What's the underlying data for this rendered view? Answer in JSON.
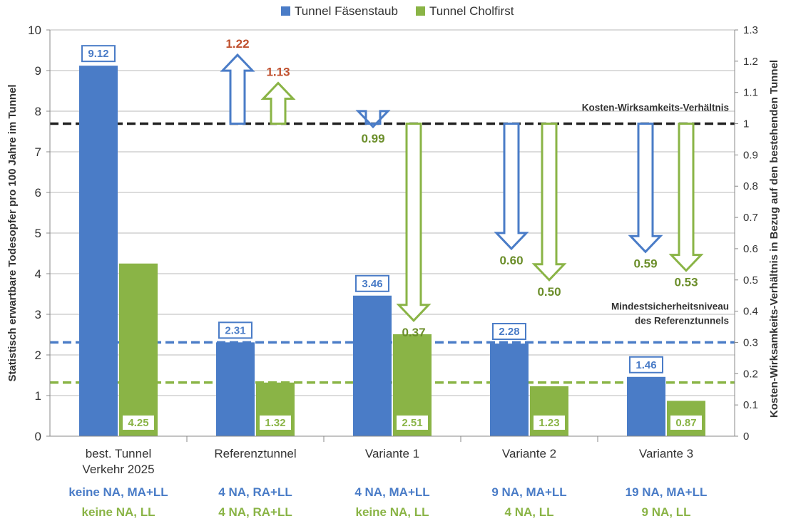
{
  "chart_data": {
    "type": "bar",
    "categories": [
      "best. Tunnel Verkehr 2025",
      "Referenztunnel",
      "Variante 1",
      "Variante 2",
      "Variante 3"
    ],
    "category_lines": [
      [
        "best. Tunnel",
        "Verkehr 2025"
      ],
      [
        "Referenztunnel"
      ],
      [
        "Variante 1"
      ],
      [
        "Variante 2"
      ],
      [
        "Variante 3"
      ]
    ],
    "series": [
      {
        "name": "Tunnel Fäsenstaub",
        "color": "#4a7cc7",
        "values": [
          9.12,
          2.31,
          3.46,
          2.28,
          1.46
        ],
        "value_labels": [
          "9.12",
          "2.31",
          "3.46",
          "2.28",
          "1.46"
        ],
        "cost_effectiveness": [
          null,
          1.22,
          0.99,
          0.6,
          0.59
        ],
        "cost_effectiveness_labels": [
          "",
          "1.22",
          "0.99",
          "0.60",
          "0.59"
        ],
        "measures": [
          "keine NA, MA+LL",
          "4 NA, RA+LL",
          "4 NA, MA+LL",
          "9 NA, MA+LL",
          "19 NA, MA+LL"
        ]
      },
      {
        "name": "Tunnel Cholfirst",
        "color": "#8ab446",
        "values": [
          4.25,
          1.32,
          2.51,
          1.23,
          0.87
        ],
        "value_labels": [
          "4.25",
          "1.32",
          "2.51",
          "1.23",
          "0.87"
        ],
        "cost_effectiveness": [
          null,
          1.13,
          0.37,
          0.5,
          0.53
        ],
        "cost_effectiveness_labels": [
          "",
          "1.13",
          "0.37",
          "0.50",
          "0.53"
        ],
        "measures": [
          "keine NA, LL",
          "4 NA, RA+LL",
          "keine NA, LL",
          "4 NA, LL",
          "9 NA, LL"
        ]
      }
    ],
    "ylabel": "Statistisch erwartbare Todesopfer pro 100 Jahre im Tunnel",
    "ylim": [
      0,
      10
    ],
    "y_ticks": [
      "0",
      "1",
      "2",
      "3",
      "4",
      "5",
      "6",
      "7",
      "8",
      "9",
      "10"
    ],
    "y2label": "Kosten-Wirksamkeits-Verhältnis in Bezug auf den bestehenden Tunnel",
    "y2lim": [
      0,
      1.3
    ],
    "y2_ticks": [
      "0",
      "0.1",
      "0.2",
      "0.3",
      "0.4",
      "0.5",
      "0.6",
      "0.7",
      "0.8",
      "0.9",
      "1",
      "1.1",
      "1.2",
      "1.3"
    ],
    "reference_lines": [
      {
        "name": "Kosten-Wirksamkeits-Verhältnis",
        "label_lines": [
          "Kosten-Wirksamkeits-Verhältnis"
        ],
        "axis": "right",
        "value": 1.0,
        "color": "#222222"
      },
      {
        "name": "Mindestsicherheitsniveau des Referenztunnels",
        "label_lines": [
          "Mindestsicherheitsniveau",
          "des Referenztunnels"
        ],
        "axis": "left",
        "value": 2.31,
        "color": "#4a7cc7"
      },
      {
        "name": "",
        "label_lines": [],
        "axis": "left",
        "value": 1.32,
        "color": "#8ab446"
      }
    ],
    "grid": true,
    "legend_position": "top",
    "increase_label_color": "#c0502e"
  }
}
